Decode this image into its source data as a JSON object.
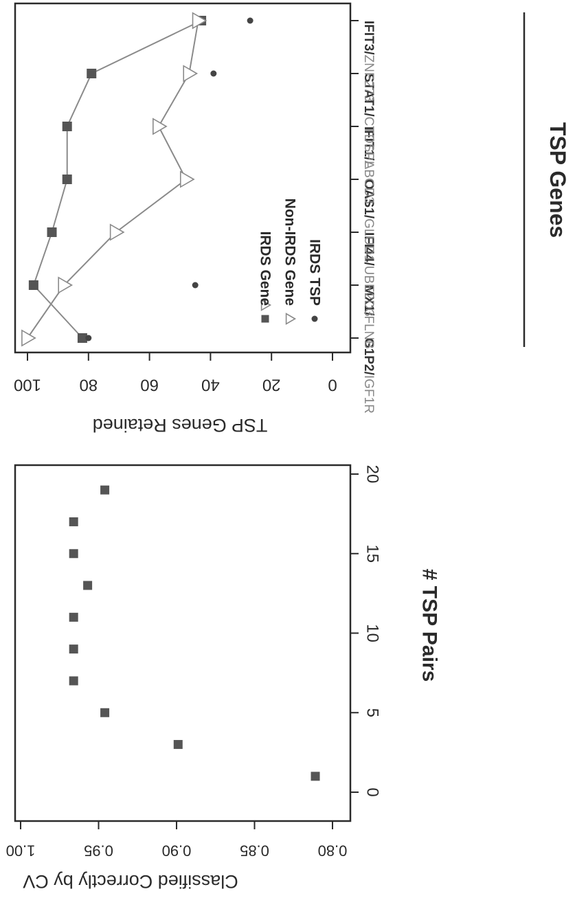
{
  "chart_data": [
    {
      "type": "scatter",
      "title": "",
      "xlabel": "# TSP Pairs",
      "ylabel": "Classified Correctly by CV",
      "xlim": [
        0,
        20
      ],
      "ylim": [
        0.8,
        1.0
      ],
      "x_ticks": [
        "0",
        "5",
        "10",
        "15",
        "20"
      ],
      "y_ticks": [
        "0.80",
        "0.85",
        "0.90",
        "0.95",
        "1.00"
      ],
      "grid": false,
      "series": [
        {
          "x": [
            1,
            3,
            5,
            7,
            9,
            11,
            13,
            15,
            17,
            19
          ],
          "values": [
            0.811,
            0.899,
            0.946,
            0.966,
            0.966,
            0.966,
            0.957,
            0.966,
            0.966,
            0.946
          ]
        }
      ]
    },
    {
      "type": "line",
      "title": "",
      "xlabel": "TSP Genes",
      "ylabel": "TSP Genes Retained",
      "ylim": [
        0,
        100
      ],
      "y_ticks": [
        "0",
        "20",
        "40",
        "60",
        "80",
        "100"
      ],
      "categories": [
        {
          "first": "G1P2",
          "second": "IGF1R"
        },
        {
          "first": "MX1",
          "second": "FLNB"
        },
        {
          "first": "IFI44",
          "second": "UBE2D3"
        },
        {
          "first": "OAS1",
          "second": "GLUD1"
        },
        {
          "first": "IFIT1",
          "second": "ABCD3"
        },
        {
          "first": "STAT1",
          "second": "CTDSPL"
        },
        {
          "first": "IFIT3",
          "second": "ZNF273"
        }
      ],
      "legend": {
        "position": "bottom-right",
        "entries": [
          "IRDS Gene",
          "Non-IRDS Gene",
          "IRDS TSP"
        ]
      },
      "grid": false,
      "series": [
        {
          "name": "IRDS Gene",
          "values": [
            82,
            98,
            92,
            87,
            87,
            79,
            43
          ]
        },
        {
          "name": "Non-IRDS Gene",
          "values": [
            100,
            88,
            71,
            48,
            57,
            47,
            44
          ]
        },
        {
          "name": "IRDS TSP",
          "values": [
            80,
            45,
            null,
            null,
            null,
            39,
            27
          ]
        }
      ]
    }
  ],
  "colors": {
    "marker": "#555555",
    "axis": "#2a2a2a",
    "line": "#8a8a8a",
    "label": "#2a2a2a"
  }
}
